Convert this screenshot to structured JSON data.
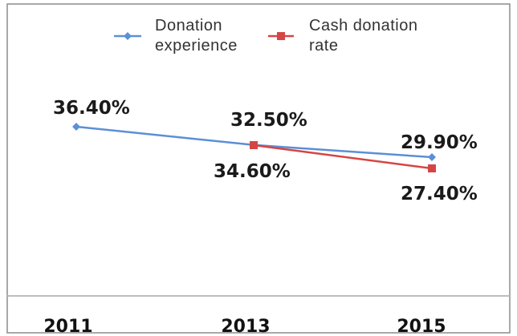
{
  "chart_data": {
    "type": "line",
    "categories": [
      "2011",
      "2013",
      "2015"
    ],
    "series": [
      {
        "name": "Donation experience",
        "legend_lines": [
          "Donation",
          "experience"
        ],
        "color": "#5b8fd6",
        "marker": "diamond",
        "values": [
          36.4,
          32.5,
          29.9
        ],
        "labels": [
          "36.40%",
          "32.50%",
          "29.90%"
        ]
      },
      {
        "name": "Cash donation rate",
        "legend_lines": [
          "Cash donation",
          "rate"
        ],
        "color": "#d64545",
        "marker": "square",
        "values": [
          null,
          34.6,
          27.4
        ],
        "labels": [
          "",
          "34.60%",
          "27.40%"
        ]
      }
    ],
    "title": "",
    "xlabel": "",
    "ylabel": "",
    "legend_position": "top",
    "grid": false
  },
  "colors": {
    "frame_border": "#8c8c8c",
    "axis_line": "#bdbdbd"
  }
}
